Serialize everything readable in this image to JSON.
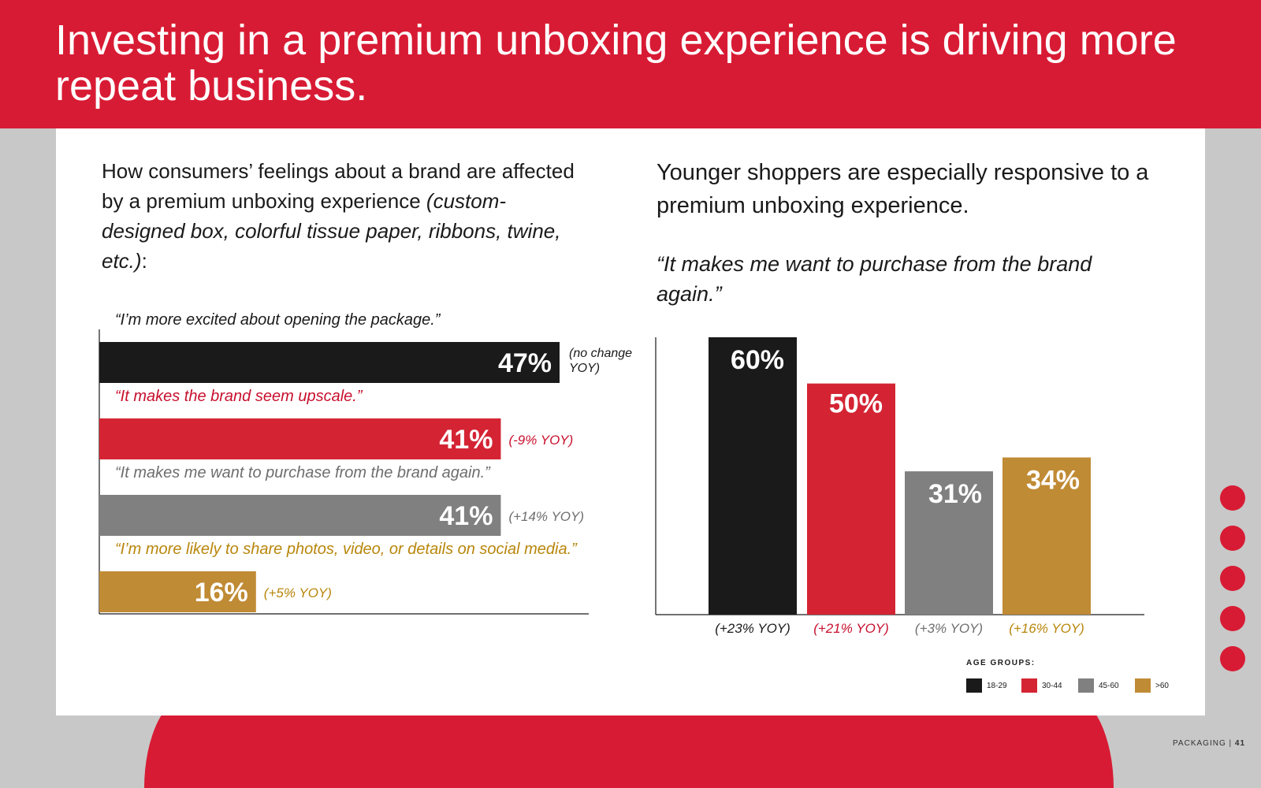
{
  "header": {
    "title": "Investing in a premium unboxing experience is driving more repeat business."
  },
  "left": {
    "intro_plain": "How consumers’ feelings about a brand are affected by a premium unboxing experience",
    "intro_italic": "(custom-designed box, colorful tissue paper, ribbons, twine, etc.)",
    "intro_suffix": ":"
  },
  "right": {
    "heading": "Younger shoppers are especially responsive to a premium unboxing experience.",
    "quote": "“It makes me want to purchase from the brand again.”"
  },
  "legend": {
    "title": "AGE GROUPS:",
    "items": [
      {
        "label": "18-29",
        "color": "#1a1a1a"
      },
      {
        "label": "30-44",
        "color": "#d42434"
      },
      {
        "label": "45-60",
        "color": "#808080"
      },
      {
        "label": ">60",
        "color": "#c08b35"
      }
    ]
  },
  "footer": {
    "section": "PACKAGING",
    "separator": "|",
    "page": "41"
  },
  "chart_data": [
    {
      "type": "bar",
      "orientation": "horizontal",
      "categories": [
        "“I’m more excited about opening the package.”",
        "“It makes the brand seem upscale.”",
        "“It makes me want to purchase from the brand again.”",
        "“I’m more likely to share photos, video, or details on social media.”"
      ],
      "values": [
        47,
        41,
        41,
        16
      ],
      "value_labels": [
        "47%",
        "41%",
        "41%",
        "16%"
      ],
      "annotations": [
        "(no change YOY)",
        "(-9% YOY)",
        "(+14% YOY)",
        "(+5% YOY)"
      ],
      "colors": [
        "#1a1a1a",
        "#d42434",
        "#808080",
        "#c08b35"
      ],
      "quote_colors": [
        "#1a1a1a",
        "#c8102e",
        "#6e6e6e",
        "#b8860b"
      ],
      "xlim": [
        0,
        100
      ]
    },
    {
      "type": "bar",
      "orientation": "vertical",
      "categories": [
        "18-29",
        "30-44",
        "45-60",
        ">60"
      ],
      "values": [
        60,
        50,
        31,
        34
      ],
      "value_labels": [
        "60%",
        "50%",
        "31%",
        "34%"
      ],
      "annotations": [
        "(+23% YOY)",
        "(+21% YOY)",
        "(+3% YOY)",
        "(+16% YOY)"
      ],
      "colors": [
        "#1a1a1a",
        "#d42434",
        "#808080",
        "#c08b35"
      ],
      "annotation_colors": [
        "#1a1a1a",
        "#c8102e",
        "#6e6e6e",
        "#b8860b"
      ],
      "ylim": [
        0,
        60
      ]
    }
  ]
}
